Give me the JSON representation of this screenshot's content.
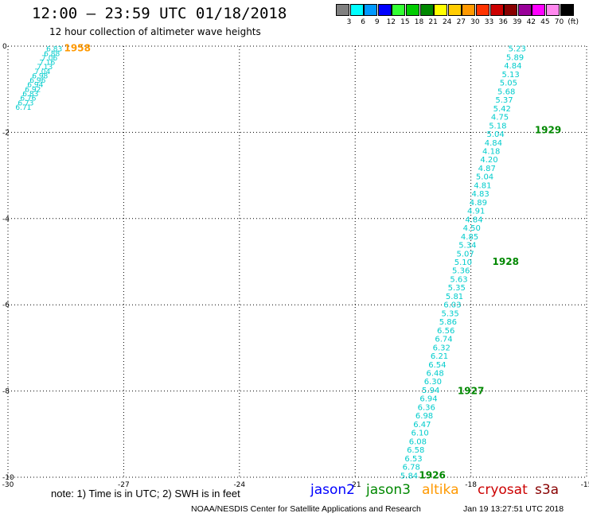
{
  "header": {
    "title": "12:00 – 23:59 UTC 01/18/2018",
    "subtitle": "12 hour collection of altimeter wave heights"
  },
  "colorbar": {
    "unit": "(ft)",
    "items": [
      {
        "label": "3",
        "color": "#808080"
      },
      {
        "label": "6",
        "color": "#00ffff"
      },
      {
        "label": "9",
        "color": "#0099ff"
      },
      {
        "label": "12",
        "color": "#0000ff"
      },
      {
        "label": "15",
        "color": "#33ff33"
      },
      {
        "label": "18",
        "color": "#00cc00"
      },
      {
        "label": "21",
        "color": "#008800"
      },
      {
        "label": "24",
        "color": "#ffff00"
      },
      {
        "label": "27",
        "color": "#ffcc00"
      },
      {
        "label": "30",
        "color": "#ff9900"
      },
      {
        "label": "33",
        "color": "#ff3300"
      },
      {
        "label": "36",
        "color": "#cc0000"
      },
      {
        "label": "39",
        "color": "#880000"
      },
      {
        "label": "42",
        "color": "#990099"
      },
      {
        "label": "45",
        "color": "#ff00ff"
      },
      {
        "label": "70",
        "color": "#ff88ee"
      },
      {
        "label": "",
        "color": "#000000"
      }
    ]
  },
  "chart_data": {
    "type": "scatter",
    "title": "12:00 – 23:59 UTC 01/18/2018",
    "subtitle": "12 hour collection of altimeter wave heights",
    "xlim": [
      -30,
      -15
    ],
    "ylim": [
      -10,
      0
    ],
    "x_ticks": [
      "-30",
      "-27",
      "-24",
      "-21",
      "-18",
      "-15"
    ],
    "y_ticks": [
      "0",
      "-2",
      "-4",
      "-6",
      "-8",
      "-10"
    ],
    "grid": true,
    "point_color": "#00cccc",
    "series": [
      {
        "name": "track_east",
        "x_start": -16.8,
        "y_start": -0.05,
        "x_end": -19.6,
        "y_end": -9.95,
        "values": [
          "5.23",
          "5.89",
          "4.84",
          "5.13",
          "5.05",
          "5.68",
          "5.37",
          "5.42",
          "4.75",
          "5.18",
          "5.04",
          "4.84",
          "4.18",
          "4.20",
          "4.87",
          "5.04",
          "4.81",
          "4.83",
          "4.89",
          "4.91",
          "4.84",
          "4.50",
          "4.85",
          "5.34",
          "5.07",
          "5.10",
          "5.36",
          "5.63",
          "5.35",
          "5.81",
          "6.03",
          "5.35",
          "5.86",
          "6.56",
          "6.74",
          "6.32",
          "6.21",
          "6.54",
          "6.48",
          "6.30",
          "5.94",
          "6.94",
          "6.36",
          "6.98",
          "6.47",
          "6.10",
          "6.08",
          "6.58",
          "6.53",
          "6.78",
          "5.84"
        ]
      },
      {
        "name": "track_west",
        "x_start": -28.8,
        "y_start": -0.05,
        "x_end": -29.6,
        "y_end": -1.4,
        "values": [
          "6.83",
          "6.88",
          "7.06",
          "7.16",
          "7.13",
          "7.04",
          "6.98",
          "6.96",
          "6.94",
          "6.92",
          "6.83",
          "6.76",
          "6.73",
          "6.71"
        ]
      }
    ],
    "annotations": [
      {
        "text": "1958",
        "x": -28.2,
        "y": -0.05,
        "color": "#ff9900"
      },
      {
        "text": "1929",
        "x": -16.0,
        "y": -1.95,
        "color": "#008800"
      },
      {
        "text": "1928",
        "x": -17.1,
        "y": -5.0,
        "color": "#008800"
      },
      {
        "text": "1927",
        "x": -18.0,
        "y": -8.0,
        "color": "#008800"
      },
      {
        "text": "1926",
        "x": -19.0,
        "y": -9.95,
        "color": "#008800"
      }
    ]
  },
  "footer": {
    "note": "note:  1) Time is in UTC;  2) SWH is in feet",
    "satellites": [
      {
        "name": "jason2",
        "color": "#0000ff"
      },
      {
        "name": "jason3",
        "color": "#008800"
      },
      {
        "name": "altika",
        "color": "#ff9900"
      },
      {
        "name": "cryosat",
        "color": "#cc0000"
      },
      {
        "name": "s3a",
        "color": "#880000"
      }
    ],
    "credit": "NOAA/NESDIS Center for Satellite Applications and Research",
    "timestamp": "Jan 19 13:27:51 UTC 2018"
  }
}
